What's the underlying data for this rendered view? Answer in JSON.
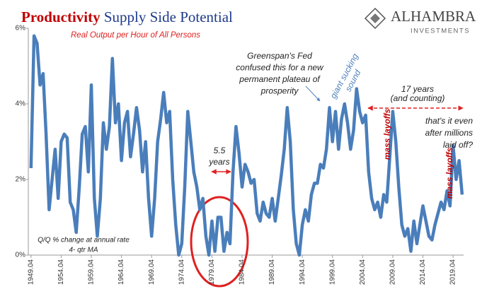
{
  "chart_data": {
    "type": "line",
    "title": [
      "Productivity",
      "Supply Side Potential"
    ],
    "subtitle": "Real Output per Hour of All Persons",
    "logo": {
      "name": "ALHAMBRA",
      "tagline": "INVESTMENTS"
    },
    "annotations": {
      "greenspan": [
        "Greenspan's Fed",
        "confused this for a new",
        "permanent plateau of",
        "prosperity"
      ],
      "giant": [
        "giant sucking",
        "sound"
      ],
      "span55": [
        "5.5",
        "years"
      ],
      "span17": [
        "17 years",
        "(and counting)"
      ],
      "question": [
        "that's it even",
        "after millions",
        "laid off?"
      ],
      "layoffs1": "mass layoffs",
      "layoffs2": "mass layoffs",
      "method": [
        "Q/Q % change at annual rate",
        "4- qtr MA"
      ]
    },
    "color": "#4a7ebb",
    "xlim": [
      1949.3,
      2021.5
    ],
    "ylim": [
      0,
      6
    ],
    "yticks": [
      {
        "value": 0,
        "label": "0%"
      },
      {
        "value": 2,
        "label": "2%"
      },
      {
        "value": 4,
        "label": "4%"
      },
      {
        "value": 6,
        "label": "6%"
      }
    ],
    "xticks": [
      {
        "value": 1949.75,
        "label": "1949.04"
      },
      {
        "value": 1954.75,
        "label": "1954.04"
      },
      {
        "value": 1959.75,
        "label": "1959.04"
      },
      {
        "value": 1964.75,
        "label": "1964.04"
      },
      {
        "value": 1969.75,
        "label": "1969.04"
      },
      {
        "value": 1974.75,
        "label": "1974.04"
      },
      {
        "value": 1979.75,
        "label": "1979.04"
      },
      {
        "value": 1984.75,
        "label": "1984.04"
      },
      {
        "value": 1989.75,
        "label": "1989.04"
      },
      {
        "value": 1994.75,
        "label": "1994.04"
      },
      {
        "value": 1999.75,
        "label": "1999.04"
      },
      {
        "value": 2004.75,
        "label": "2004.04"
      },
      {
        "value": 2009.75,
        "label": "2009.04"
      },
      {
        "value": 2014.75,
        "label": "2014.04"
      },
      {
        "value": 2019.75,
        "label": "2019.04"
      }
    ],
    "x": [
      1949.75,
      1950.25,
      1950.75,
      1951.25,
      1951.75,
      1952.25,
      1952.75,
      1953.25,
      1953.75,
      1954.25,
      1954.75,
      1955.25,
      1955.75,
      1956.25,
      1956.75,
      1957.25,
      1957.75,
      1958.25,
      1958.75,
      1959.25,
      1959.75,
      1960.25,
      1960.75,
      1961.25,
      1961.75,
      1962.25,
      1962.75,
      1963.25,
      1963.75,
      1964.25,
      1964.75,
      1965.25,
      1965.75,
      1966.25,
      1966.75,
      1967.25,
      1967.75,
      1968.25,
      1968.75,
      1969.25,
      1969.75,
      1970.25,
      1970.75,
      1971.25,
      1971.75,
      1972.25,
      1972.75,
      1973.25,
      1973.75,
      1974.25,
      1974.75,
      1975.25,
      1975.75,
      1976.25,
      1976.75,
      1977.25,
      1977.75,
      1978.25,
      1978.75,
      1979.25,
      1979.75,
      1980.25,
      1980.75,
      1981.25,
      1981.75,
      1982.25,
      1982.75,
      1983.25,
      1983.75,
      1984.25,
      1984.75,
      1985.25,
      1985.75,
      1986.25,
      1986.75,
      1987.25,
      1987.75,
      1988.25,
      1988.75,
      1989.25,
      1989.75,
      1990.25,
      1990.75,
      1991.25,
      1991.75,
      1992.25,
      1992.75,
      1993.25,
      1993.75,
      1994.25,
      1994.75,
      1995.25,
      1995.75,
      1996.25,
      1996.75,
      1997.25,
      1997.75,
      1998.25,
      1998.75,
      1999.25,
      1999.75,
      2000.25,
      2000.75,
      2001.25,
      2001.75,
      2002.25,
      2002.75,
      2003.25,
      2003.75,
      2004.25,
      2004.75,
      2005.25,
      2005.75,
      2006.25,
      2006.75,
      2007.25,
      2007.75,
      2008.25,
      2008.75,
      2009.25,
      2009.75,
      2010.25,
      2010.75,
      2011.25,
      2011.75,
      2012.25,
      2012.75,
      2013.25,
      2013.75,
      2014.25,
      2014.75,
      2015.25,
      2015.75,
      2016.25,
      2016.75,
      2017.25,
      2017.75,
      2018.25,
      2018.75,
      2019.25,
      2019.75,
      2020.25,
      2020.75,
      2021.25
    ],
    "values": [
      2.3,
      5.8,
      5.6,
      4.5,
      4.8,
      3.2,
      1.2,
      2.0,
      2.8,
      1.5,
      3.0,
      3.2,
      3.1,
      1.4,
      1.2,
      0.6,
      1.8,
      3.2,
      3.4,
      2.2,
      4.5,
      1.5,
      0.5,
      1.5,
      3.5,
      2.8,
      3.4,
      5.2,
      3.5,
      4.0,
      2.5,
      3.5,
      3.8,
      2.6,
      3.2,
      3.9,
      3.3,
      2.2,
      3.0,
      1.5,
      0.5,
      1.5,
      3.0,
      3.6,
      4.3,
      3.5,
      3.8,
      2.0,
      0.8,
      0.0,
      0.3,
      1.8,
      3.8,
      3.0,
      2.2,
      1.8,
      1.2,
      1.5,
      0.5,
      0.0,
      0.9,
      0.1,
      1.0,
      1.0,
      0.1,
      0.6,
      0.3,
      2.2,
      3.4,
      2.7,
      1.8,
      2.4,
      2.2,
      1.9,
      2.0,
      1.1,
      0.9,
      1.4,
      1.1,
      1.0,
      1.5,
      0.9,
      1.5,
      2.1,
      2.8,
      3.9,
      3.0,
      1.2,
      0.3,
      0.0,
      0.8,
      1.2,
      0.9,
      1.6,
      1.9,
      1.9,
      2.4,
      2.3,
      2.8,
      3.9,
      3.0,
      3.8,
      2.8,
      3.6,
      4.0,
      3.5,
      2.8,
      3.3,
      4.4,
      3.8,
      3.5,
      3.7,
      2.2,
      1.5,
      1.2,
      1.4,
      1.0,
      1.6,
      1.4,
      2.6,
      3.8,
      3.0,
      1.8,
      0.8,
      0.5,
      0.7,
      0.1,
      0.9,
      0.3,
      0.8,
      1.3,
      0.9,
      0.5,
      0.4,
      0.8,
      1.1,
      1.4,
      1.2,
      1.7,
      1.3,
      2.9,
      2.0,
      2.5,
      1.6
    ]
  }
}
